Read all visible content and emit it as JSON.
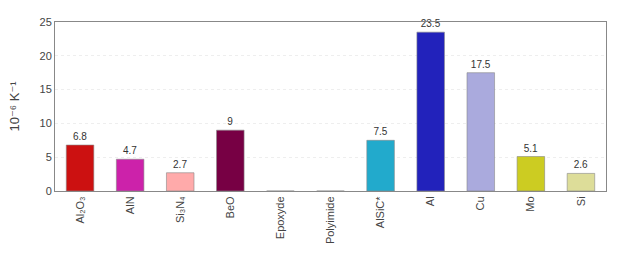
{
  "chart_data": {
    "type": "bar",
    "categories": [
      "Al₂O₃",
      "AlN",
      "Si₃N₄",
      "BeO",
      "Epoxyde",
      "Polyimide",
      "AlSiC*",
      "Al",
      "Cu",
      "Mo",
      "Si"
    ],
    "values": [
      6.8,
      4.7,
      2.7,
      9.0,
      0.0,
      0.0,
      7.5,
      23.5,
      17.5,
      5.1,
      2.6
    ],
    "value_labels": [
      "6.8",
      "4.7",
      "2.7",
      "9",
      null,
      null,
      "7.5",
      "23.5",
      "17.5",
      "5.1",
      "2.6"
    ],
    "colors": [
      "#cc1111",
      "#cc22aa",
      "#ffaaaa",
      "#770044",
      "#ffffff",
      "#ffffff",
      "#22aacc",
      "#2222bb",
      "#aaaadd",
      "#cccc22",
      "#dddd99"
    ],
    "ylabel": "10⁻⁶ K⁻¹",
    "ylim": [
      0,
      25
    ],
    "yticks": [
      0,
      5,
      10,
      15,
      20,
      25
    ],
    "grid": true,
    "data_labels": true
  }
}
